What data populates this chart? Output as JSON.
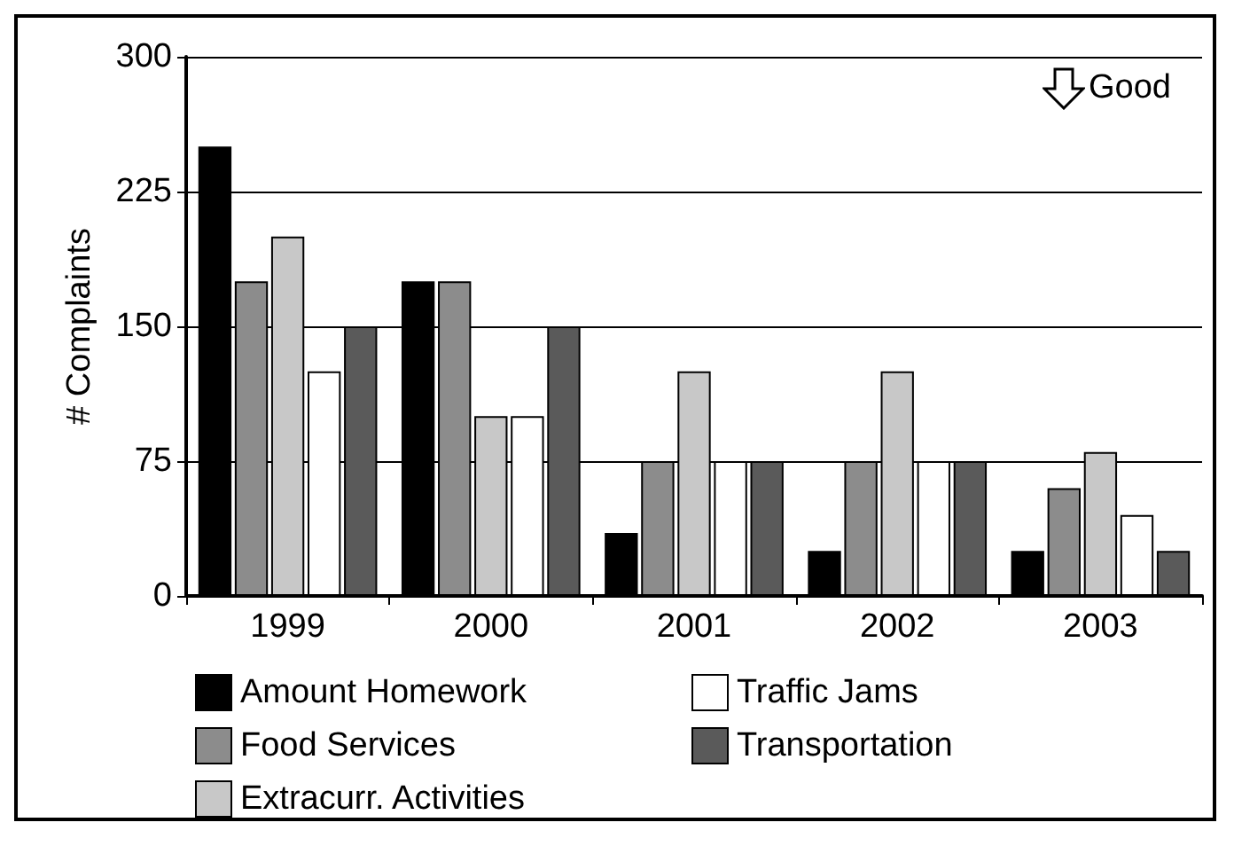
{
  "chart_data": {
    "type": "bar",
    "ylabel": "# Complaints",
    "categories": [
      "1999",
      "2000",
      "2001",
      "2002",
      "2003"
    ],
    "series": [
      {
        "name": "Amount Homework",
        "color": "#000000",
        "values": [
          250,
          175,
          35,
          25,
          25
        ]
      },
      {
        "name": "Food Services",
        "color": "#8c8c8c",
        "values": [
          175,
          175,
          75,
          75,
          60
        ]
      },
      {
        "name": "Extracurr. Activities",
        "color": "#c8c8c8",
        "values": [
          200,
          100,
          125,
          125,
          80
        ]
      },
      {
        "name": "Traffic Jams",
        "color": "#ffffff",
        "values": [
          125,
          100,
          75,
          75,
          45
        ]
      },
      {
        "name": "Transportation",
        "color": "#5a5a5a",
        "values": [
          150,
          150,
          75,
          75,
          25
        ]
      }
    ],
    "ylim": [
      0,
      300
    ],
    "yticks": [
      0,
      75,
      150,
      225,
      300
    ],
    "grid": "y",
    "legend": "bottom",
    "annotations": [
      "Good"
    ]
  }
}
